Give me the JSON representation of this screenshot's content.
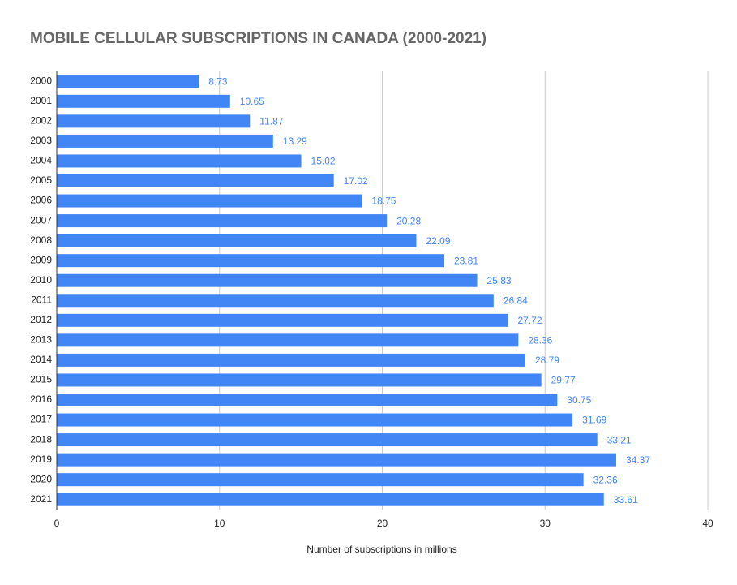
{
  "chart_data": {
    "type": "bar",
    "horizontal": true,
    "title": "MOBILE CELLULAR SUBSCRIPTIONS IN CANADA (2000-2021)",
    "x_axis_label": "Number of subscriptions in millions",
    "categories": [
      "2000",
      "2001",
      "2002",
      "2003",
      "2004",
      "2005",
      "2006",
      "2007",
      "2008",
      "2009",
      "2010",
      "2011",
      "2012",
      "2013",
      "2014",
      "2015",
      "2016",
      "2017",
      "2018",
      "2019",
      "2020",
      "2021"
    ],
    "values": [
      8.73,
      10.65,
      11.87,
      13.29,
      15.02,
      17.02,
      18.75,
      20.28,
      22.09,
      23.81,
      25.83,
      26.84,
      27.72,
      28.36,
      28.79,
      29.77,
      30.75,
      31.69,
      33.21,
      34.37,
      32.36,
      33.61
    ],
    "color": "#4285f4",
    "xlim": [
      0,
      40
    ],
    "xticks": [
      0,
      10,
      20,
      30,
      40
    ],
    "grid": true
  }
}
